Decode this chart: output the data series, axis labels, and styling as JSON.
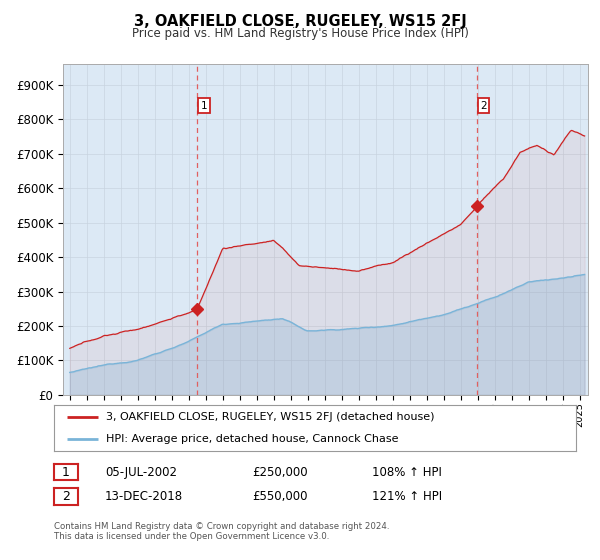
{
  "title": "3, OAKFIELD CLOSE, RUGELEY, WS15 2FJ",
  "subtitle": "Price paid vs. HM Land Registry's House Price Index (HPI)",
  "ylabel_ticks": [
    "£0",
    "£100K",
    "£200K",
    "£300K",
    "£400K",
    "£500K",
    "£600K",
    "£700K",
    "£800K",
    "£900K"
  ],
  "ytick_values": [
    0,
    100000,
    200000,
    300000,
    400000,
    500000,
    600000,
    700000,
    800000,
    900000
  ],
  "ylim": [
    0,
    960000
  ],
  "xlim_start": 1994.6,
  "xlim_end": 2025.5,
  "sale1_x": 2002.51,
  "sale1_y": 250000,
  "sale2_x": 2018.95,
  "sale2_y": 550000,
  "legend_line1": "3, OAKFIELD CLOSE, RUGELEY, WS15 2FJ (detached house)",
  "legend_line2": "HPI: Average price, detached house, Cannock Chase",
  "footer": "Contains HM Land Registry data © Crown copyright and database right 2024.\nThis data is licensed under the Open Government Licence v3.0.",
  "hpi_color": "#7ab4d8",
  "price_color": "#cc2222",
  "bg_color": "#dce9f5",
  "plot_bg": "#ffffff",
  "dashed_line_color": "#e06060"
}
